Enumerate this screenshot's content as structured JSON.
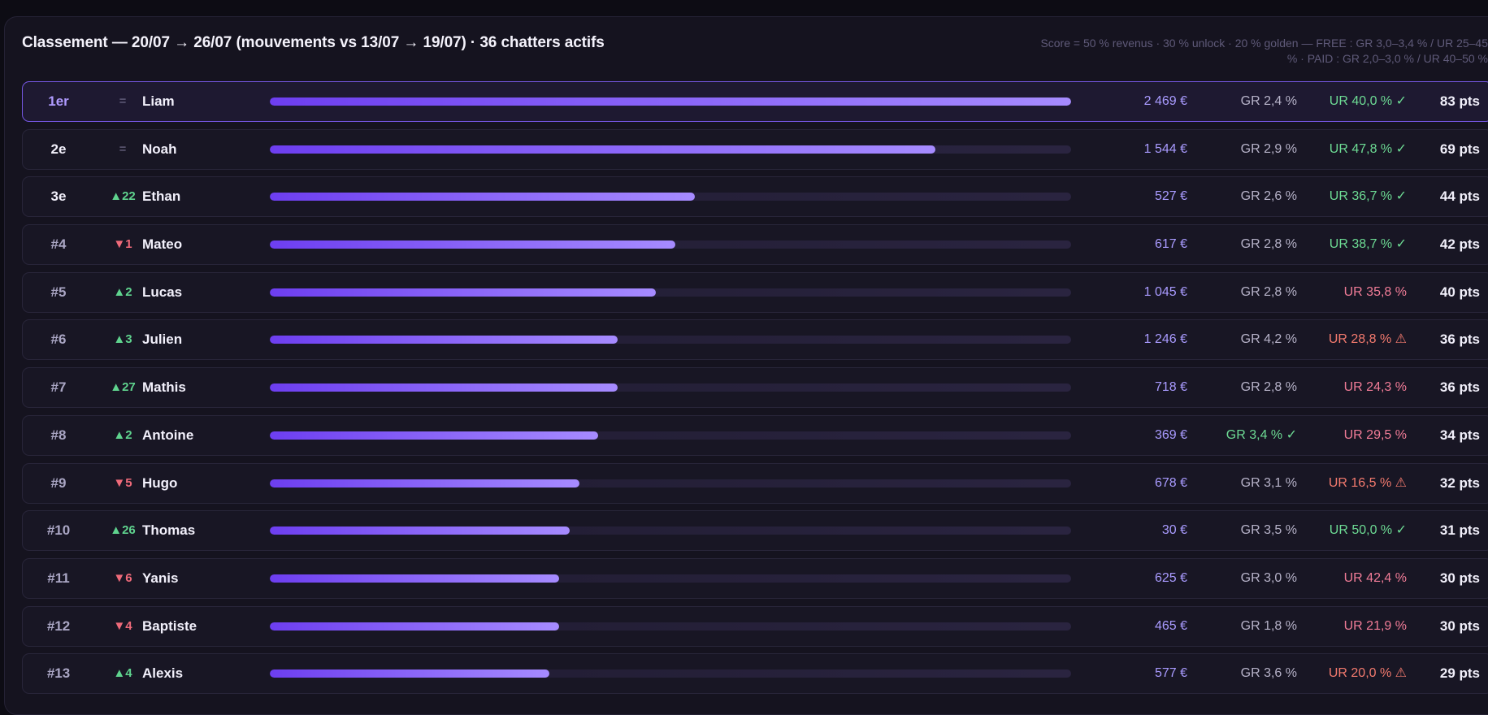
{
  "header": {
    "title": "Classement — 20/07 → 26/07 (mouvements vs 13/07 → 19/07) · 36 chatters actifs",
    "legend": "Score = 50 % revenus · 30 % unlock · 20 % golden — FREE : GR 3,0–3,4 % / UR 25–45 % · PAID : GR 2,0–3,0 % / UR 40–50 %"
  },
  "colors": {
    "background": "#0d0c14",
    "panel": "#15131f",
    "accent": "#8b6cff",
    "good": "#6ddb94",
    "bad": "#f17c97",
    "up": "#5fd38e",
    "down": "#ef6a7a"
  },
  "rows": [
    {
      "rank": "1er",
      "move": "=",
      "move_dir": "same",
      "name": "Liam",
      "bar": 1.0,
      "revenue": "2 469 €",
      "gr": "GR 2,4 %",
      "gr_status": "neutral",
      "ur": "UR 40,0 % ✓",
      "ur_status": "good",
      "points": "83 pts"
    },
    {
      "rank": "2e",
      "move": "=",
      "move_dir": "same",
      "name": "Noah",
      "bar": 0.831,
      "revenue": "1 544 €",
      "gr": "GR 2,9 %",
      "gr_status": "neutral",
      "ur": "UR 47,8 % ✓",
      "ur_status": "good",
      "points": "69 pts"
    },
    {
      "rank": "3e",
      "move": "▲22",
      "move_dir": "up",
      "name": "Ethan",
      "bar": 0.53,
      "revenue": "527 €",
      "gr": "GR 2,6 %",
      "gr_status": "neutral",
      "ur": "UR 36,7 % ✓",
      "ur_status": "good",
      "points": "44 pts"
    },
    {
      "rank": "#4",
      "move": "▼1",
      "move_dir": "down",
      "name": "Mateo",
      "bar": 0.506,
      "revenue": "617 €",
      "gr": "GR 2,8 %",
      "gr_status": "neutral",
      "ur": "UR 38,7 % ✓",
      "ur_status": "good",
      "points": "42 pts"
    },
    {
      "rank": "#5",
      "move": "▲2",
      "move_dir": "up",
      "name": "Lucas",
      "bar": 0.482,
      "revenue": "1 045 €",
      "gr": "GR 2,8 %",
      "gr_status": "neutral",
      "ur": "UR 35,8 %",
      "ur_status": "bad",
      "points": "40 pts"
    },
    {
      "rank": "#6",
      "move": "▲3",
      "move_dir": "up",
      "name": "Julien",
      "bar": 0.434,
      "revenue": "1 246 €",
      "gr": "GR 4,2 %",
      "gr_status": "neutral",
      "ur": "UR 28,8 % ⚠",
      "ur_status": "warn",
      "points": "36 pts"
    },
    {
      "rank": "#7",
      "move": "▲27",
      "move_dir": "up",
      "name": "Mathis",
      "bar": 0.434,
      "revenue": "718 €",
      "gr": "GR 2,8 %",
      "gr_status": "neutral",
      "ur": "UR 24,3 %",
      "ur_status": "bad",
      "points": "36 pts"
    },
    {
      "rank": "#8",
      "move": "▲2",
      "move_dir": "up",
      "name": "Antoine",
      "bar": 0.41,
      "revenue": "369 €",
      "gr": "GR 3,4 % ✓",
      "gr_status": "good",
      "ur": "UR 29,5 %",
      "ur_status": "bad",
      "points": "34 pts"
    },
    {
      "rank": "#9",
      "move": "▼5",
      "move_dir": "down",
      "name": "Hugo",
      "bar": 0.386,
      "revenue": "678 €",
      "gr": "GR 3,1 %",
      "gr_status": "neutral",
      "ur": "UR 16,5 % ⚠",
      "ur_status": "warn",
      "points": "32 pts"
    },
    {
      "rank": "#10",
      "move": "▲26",
      "move_dir": "up",
      "name": "Thomas",
      "bar": 0.374,
      "revenue": "30 €",
      "gr": "GR 3,5 %",
      "gr_status": "neutral",
      "ur": "UR 50,0 % ✓",
      "ur_status": "good",
      "points": "31 pts"
    },
    {
      "rank": "#11",
      "move": "▼6",
      "move_dir": "down",
      "name": "Yanis",
      "bar": 0.361,
      "revenue": "625 €",
      "gr": "GR 3,0 %",
      "gr_status": "neutral",
      "ur": "UR 42,4 %",
      "ur_status": "bad",
      "points": "30 pts"
    },
    {
      "rank": "#12",
      "move": "▼4",
      "move_dir": "down",
      "name": "Baptiste",
      "bar": 0.361,
      "revenue": "465 €",
      "gr": "GR 1,8 %",
      "gr_status": "neutral",
      "ur": "UR 21,9 %",
      "ur_status": "bad",
      "points": "30 pts"
    },
    {
      "rank": "#13",
      "move": "▲4",
      "move_dir": "up",
      "name": "Alexis",
      "bar": 0.349,
      "revenue": "577 €",
      "gr": "GR 3,6 %",
      "gr_status": "neutral",
      "ur": "UR 20,0 % ⚠",
      "ur_status": "warn",
      "points": "29 pts"
    }
  ]
}
